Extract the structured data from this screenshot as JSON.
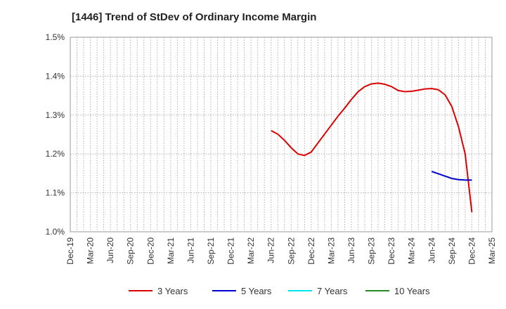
{
  "chart_data": {
    "type": "line",
    "title": "[1446]  Trend of StDev of Ordinary Income Margin",
    "xlabel": "",
    "ylabel": "",
    "x_ticks": [
      "Dec-19",
      "Mar-20",
      "Jun-20",
      "Sep-20",
      "Dec-20",
      "Mar-21",
      "Jun-21",
      "Sep-21",
      "Dec-21",
      "Mar-22",
      "Jun-22",
      "Sep-22",
      "Dec-22",
      "Mar-23",
      "Jun-23",
      "Sep-23",
      "Dec-23",
      "Mar-24",
      "Jun-24",
      "Sep-24",
      "Dec-24",
      "Mar-25"
    ],
    "y_ticks": [
      "1.0%",
      "1.1%",
      "1.2%",
      "1.3%",
      "1.4%",
      "1.5%"
    ],
    "ylim": [
      1.0,
      1.5
    ],
    "grid": true,
    "legend_position": "bottom",
    "series": [
      {
        "name": "3 Years",
        "color": "#dd0000",
        "x": [
          "Jun-22",
          "Jul-22",
          "Aug-22",
          "Sep-22",
          "Oct-22",
          "Nov-22",
          "Dec-22",
          "Jan-23",
          "Feb-23",
          "Mar-23",
          "Apr-23",
          "May-23",
          "Jun-23",
          "Jul-23",
          "Aug-23",
          "Sep-23",
          "Oct-23",
          "Nov-23",
          "Dec-23",
          "Jan-24",
          "Feb-24",
          "Mar-24",
          "Apr-24",
          "May-24",
          "Jun-24",
          "Jul-24",
          "Aug-24",
          "Sep-24",
          "Oct-24",
          "Nov-24",
          "Dec-24"
        ],
        "values": [
          1.26,
          1.251,
          1.235,
          1.216,
          1.2,
          1.196,
          1.205,
          1.228,
          1.251,
          1.274,
          1.297,
          1.318,
          1.34,
          1.36,
          1.373,
          1.38,
          1.382,
          1.379,
          1.373,
          1.363,
          1.36,
          1.361,
          1.364,
          1.367,
          1.368,
          1.365,
          1.352,
          1.322,
          1.27,
          1.2,
          1.05
        ]
      },
      {
        "name": "5 Years",
        "color": "#0000cc",
        "x": [
          "Jun-24",
          "Jul-24",
          "Aug-24",
          "Sep-24",
          "Oct-24",
          "Nov-24",
          "Dec-24"
        ],
        "values": [
          1.155,
          1.149,
          1.143,
          1.137,
          1.134,
          1.133,
          1.133
        ]
      },
      {
        "name": "7 Years",
        "color": "#00e5ee",
        "x": [],
        "values": []
      },
      {
        "name": "10 Years",
        "color": "#228b22",
        "x": [],
        "values": []
      }
    ]
  }
}
